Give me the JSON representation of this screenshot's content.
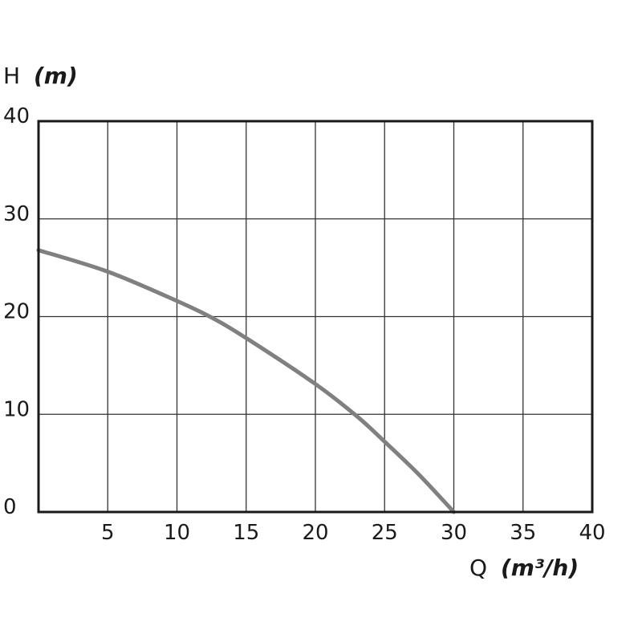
{
  "chart_data": {
    "type": "line",
    "title": "",
    "xlabel": {
      "symbol": "Q",
      "unit": "(m³/h)"
    },
    "ylabel": {
      "symbol": "H",
      "unit": "(m)"
    },
    "xlim": [
      0,
      40
    ],
    "ylim": [
      0,
      40
    ],
    "x_ticks": [
      "5",
      "10",
      "15",
      "20",
      "25",
      "30",
      "35",
      "40"
    ],
    "y_ticks": [
      "0",
      "10",
      "20",
      "30",
      "40"
    ],
    "grid": true,
    "series": [
      {
        "color": "#808080",
        "x": [
          0,
          5,
          10,
          12.5,
          15,
          20,
          23,
          25,
          27.5,
          30
        ],
        "y": [
          26.8,
          24.6,
          21.6,
          19.9,
          17.8,
          13.1,
          9.8,
          7.2,
          3.8,
          0
        ]
      }
    ]
  }
}
